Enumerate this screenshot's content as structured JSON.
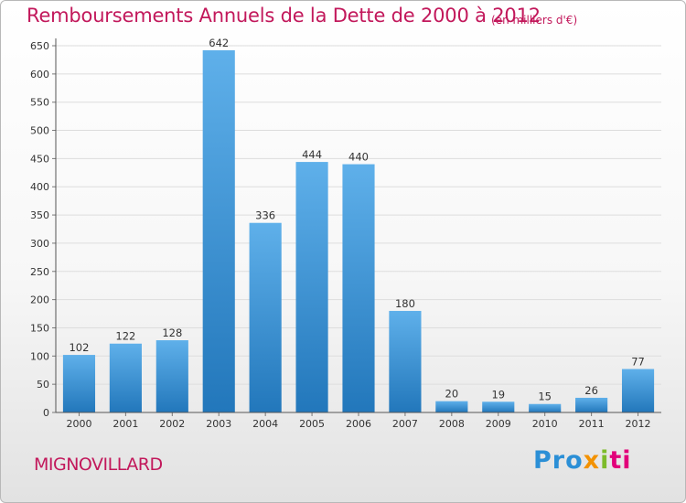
{
  "header": {
    "title": "Remboursements Annuels de la Dette de 2000 à 2012",
    "subtitle": "(en milliers d'€)"
  },
  "footer": {
    "commune": "MIGNOVILLARD",
    "logo_parts": [
      "Pro",
      "x",
      "i",
      "ti"
    ]
  },
  "colors": {
    "title": "#c2185b",
    "bar_light": "#5fb0ea",
    "bar_dark": "#2277bb",
    "grid": "#dddddd"
  },
  "chart_data": {
    "type": "bar",
    "categories": [
      "2000",
      "2001",
      "2002",
      "2003",
      "2004",
      "2005",
      "2006",
      "2007",
      "2008",
      "2009",
      "2010",
      "2011",
      "2012"
    ],
    "values": [
      102,
      122,
      128,
      642,
      336,
      444,
      440,
      180,
      20,
      19,
      15,
      26,
      77
    ],
    "data_labels": [
      "102",
      "122",
      "128",
      "642",
      "336",
      "444",
      "440",
      "180",
      "20",
      "19",
      "15",
      "26",
      "77"
    ],
    "ylim": [
      0,
      650
    ],
    "yticks": [
      0,
      50,
      100,
      150,
      200,
      250,
      300,
      350,
      400,
      450,
      500,
      550,
      600,
      650
    ],
    "ytick_labels": [
      "0",
      "50",
      "100",
      "150",
      "200",
      "250",
      "300",
      "350",
      "400",
      "450",
      "500",
      "550",
      "600",
      "650"
    ],
    "grid": true,
    "legend": "none"
  }
}
